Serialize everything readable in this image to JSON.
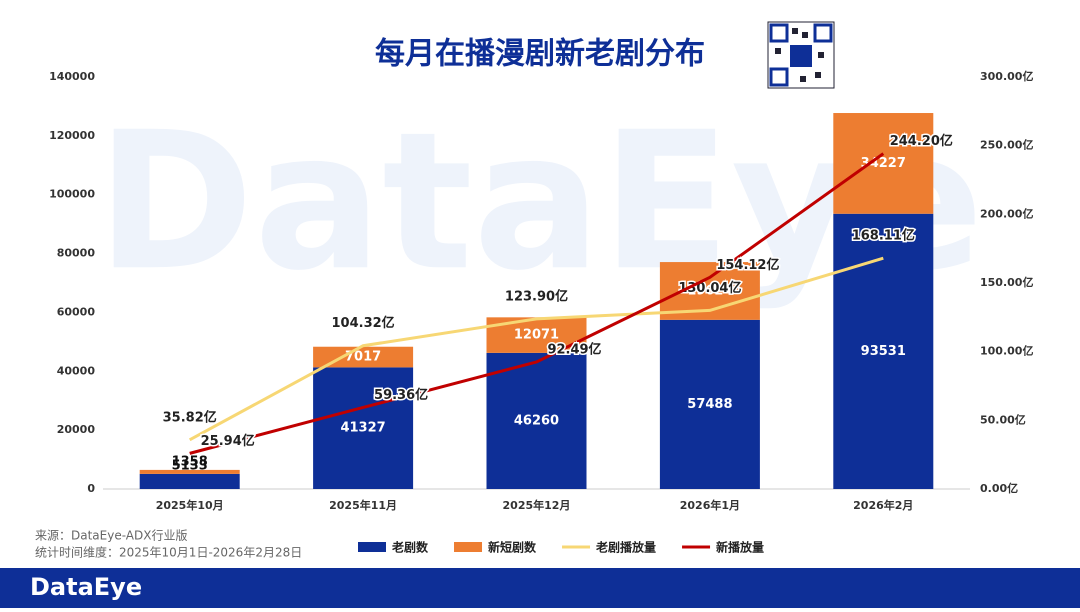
{
  "chart_data": {
    "type": "bar",
    "stacked": true,
    "title": "每月在播漫剧新老剧分布",
    "watermark": "DataEye",
    "source": "来源：DataEye-ADX行业版",
    "period": "统计时间维度：2025年10月1日-2026年2月28日",
    "brand": "DataEye",
    "categories": [
      "2025年10月",
      "2025年11月",
      "2025年12月",
      "2026年1月",
      "2026年2月"
    ],
    "series": [
      {
        "name": "老剧数",
        "type": "bar",
        "color": "#0e2f97",
        "values": [
          5133,
          41327,
          46260,
          57488,
          93531
        ]
      },
      {
        "name": "新短剧数",
        "type": "bar",
        "color": "#ed7d31",
        "values": [
          1358,
          7017,
          12071,
          19624,
          34227
        ]
      },
      {
        "name": "老剧播放量",
        "type": "line",
        "axis": "y2",
        "color": "#f7d774",
        "values": [
          35.82,
          104.32,
          123.9,
          130.04,
          168.11
        ],
        "value_labels": [
          "35.82亿",
          "104.32亿",
          "123.90亿",
          "130.04亿",
          "168.11亿"
        ]
      },
      {
        "name": "新播放量",
        "type": "line",
        "axis": "y2",
        "color": "#c00000",
        "values": [
          25.94,
          59.36,
          92.49,
          154.12,
          244.2
        ],
        "value_labels": [
          "25.94亿",
          "59.36亿",
          "92.49亿",
          "154.12亿",
          "244.20亿"
        ]
      }
    ],
    "ylim": [
      0,
      140000
    ],
    "yticks": [
      0,
      20000,
      40000,
      60000,
      80000,
      100000,
      120000,
      140000
    ],
    "y2lim": [
      0,
      300
    ],
    "y2ticks": [
      {
        "value": 0,
        "label": "0.00亿"
      },
      {
        "value": 50,
        "label": "50.00亿"
      },
      {
        "value": 100,
        "label": "100.00亿"
      },
      {
        "value": 150,
        "label": "150.00亿"
      },
      {
        "value": 200,
        "label": "200.00亿"
      },
      {
        "value": 250,
        "label": "250.00亿"
      },
      {
        "value": 300,
        "label": "300.00亿"
      }
    ],
    "legend": "bottom"
  }
}
